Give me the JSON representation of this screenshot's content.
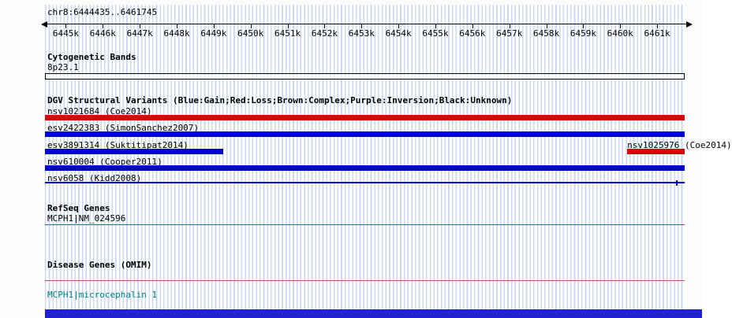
{
  "header": {
    "region_label": "chr8:6444435..6461745"
  },
  "ruler": {
    "start": 6444435,
    "end": 6461745,
    "ticks": [
      {
        "label": "6445k",
        "pos": 6445000
      },
      {
        "label": "6446k",
        "pos": 6446000
      },
      {
        "label": "6447k",
        "pos": 6447000
      },
      {
        "label": "6448k",
        "pos": 6448000
      },
      {
        "label": "6449k",
        "pos": 6449000
      },
      {
        "label": "6450k",
        "pos": 6450000
      },
      {
        "label": "6451k",
        "pos": 6451000
      },
      {
        "label": "6452k",
        "pos": 6452000
      },
      {
        "label": "6453k",
        "pos": 6453000
      },
      {
        "label": "6454k",
        "pos": 6454000
      },
      {
        "label": "6455k",
        "pos": 6455000
      },
      {
        "label": "6456k",
        "pos": 6456000
      },
      {
        "label": "6457k",
        "pos": 6457000
      },
      {
        "label": "6458k",
        "pos": 6458000
      },
      {
        "label": "6459k",
        "pos": 6459000
      },
      {
        "label": "6460k",
        "pos": 6460000
      },
      {
        "label": "6461k",
        "pos": 6461000
      }
    ]
  },
  "colors": {
    "gain_blue": "#0000d2",
    "loss_red": "#dd0000",
    "refseq_magenta": "#bb22bb",
    "omim_line": "#b25a4d",
    "omim_gene_text": "#008080",
    "scrollbar_blue": "#2222d2",
    "grid_stripe": "#ccd9ee"
  },
  "sections": {
    "cytogenetic": {
      "title": "Cytogenetic Bands",
      "band_label": "8p23.1"
    },
    "dgv": {
      "title": "DGV Structural Variants (Blue:Gain;Red:Loss;Brown:Complex;Purple:Inversion;Black:Unknown)",
      "variants": [
        {
          "label": "nsv1021684 (Coe2014)",
          "row": 0,
          "shape": "bar",
          "color_key": "loss_red",
          "start": 6444435,
          "end": 6461745
        },
        {
          "label": "esv2422383 (SimonSanchez2007)",
          "row": 1,
          "shape": "bar",
          "color_key": "gain_blue",
          "start": 6444435,
          "end": 6461745
        },
        {
          "label": "esv3891314 (Suktitipat2014)",
          "row": 2,
          "shape": "bar",
          "color_key": "gain_blue",
          "start": 6444435,
          "end": 6449260
        },
        {
          "label": "nsv1025976 (Coe2014)",
          "row": 2,
          "shape": "bar",
          "color_key": "loss_red",
          "start": 6460190,
          "end": 6461745,
          "label_bp": 6460190
        },
        {
          "label": "nsv610004 (Cooper2011)",
          "row": 3,
          "shape": "bar",
          "color_key": "gain_blue",
          "start": 6444435,
          "end": 6461745
        },
        {
          "label": "nsv6058 (Kidd2008)",
          "row": 4,
          "shape": "line",
          "color_key": "gain_blue",
          "start": 6444435,
          "end": 6461745,
          "end_tick": 6461530
        }
      ]
    },
    "refseq": {
      "title": "RefSeq Genes",
      "gene_label": "MCPH1|NM_024596"
    },
    "omim": {
      "title": "Disease Genes (OMIM)",
      "gene_label": "MCPH1|microcephalin 1"
    }
  }
}
